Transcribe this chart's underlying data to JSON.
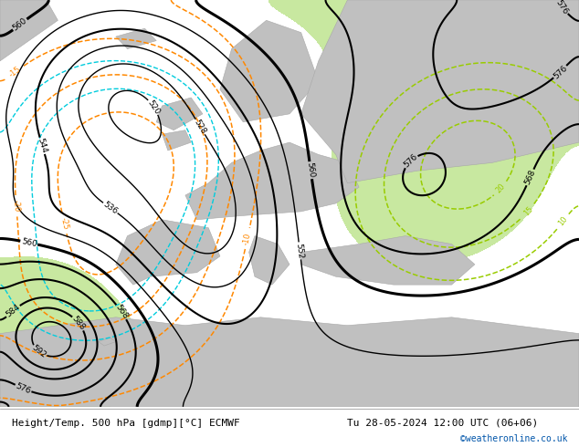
{
  "title_left": "Height/Temp. 500 hPa [gdmp][°C] ECMWF",
  "title_right": "Tu 28-05-2024 12:00 UTC (06+06)",
  "credit": "©weatheronline.co.uk",
  "bg_color": "#d8d8d8",
  "green_fill": "#c8e8a0",
  "land_color": "#c0c0c0",
  "sea_color": "#d8d8d8",
  "bottom_bar_color": "#ffffff",
  "bottom_text_color": "#000000",
  "credit_color": "#0055aa",
  "fig_width": 6.34,
  "fig_height": 4.9,
  "dpi": 100
}
